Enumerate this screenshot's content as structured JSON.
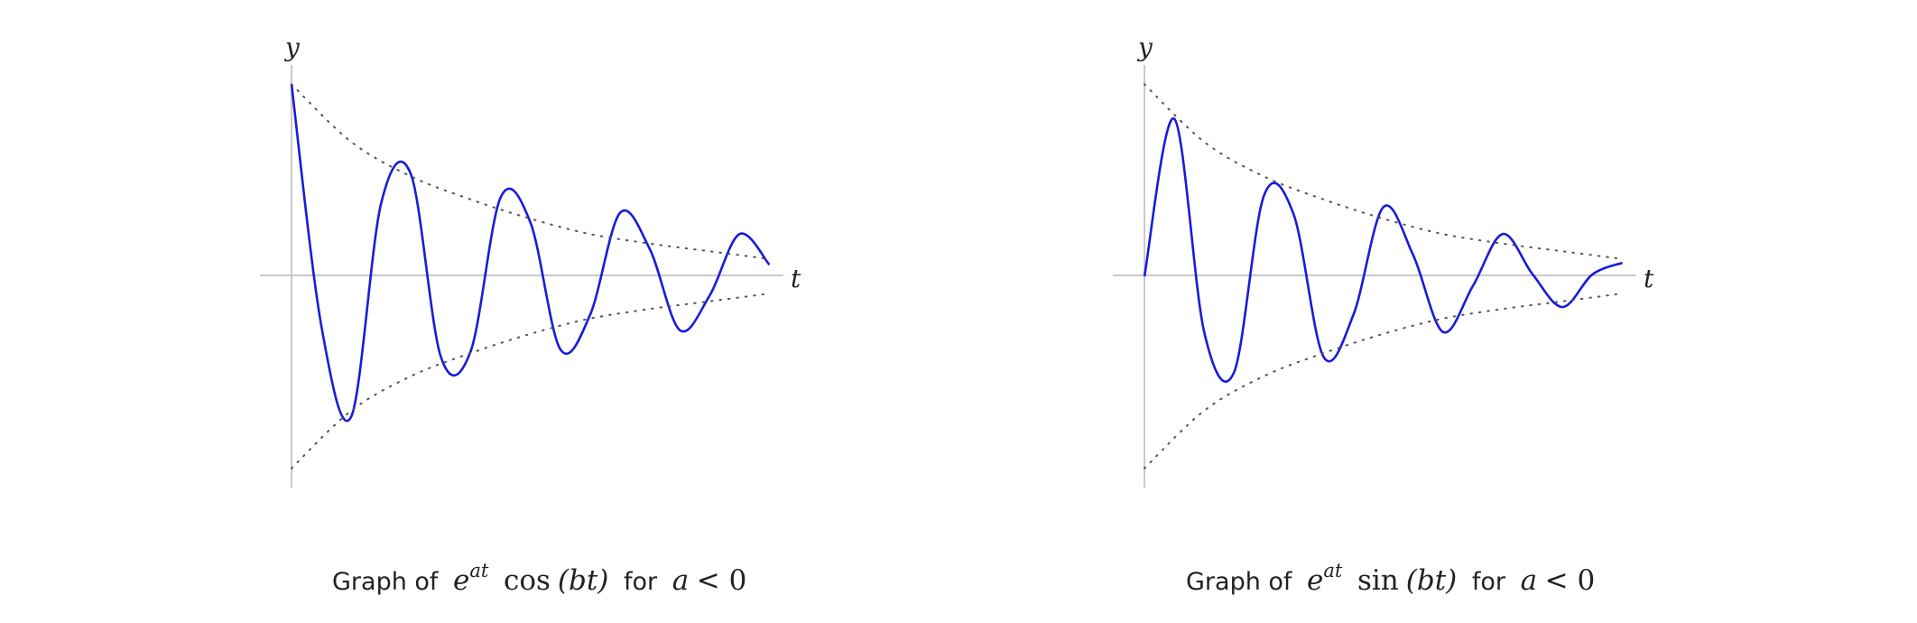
{
  "colors": {
    "curve": "#1a1adc",
    "envelope": "#555555",
    "axis": "#c9c9c9",
    "text": "#222222"
  },
  "chart_data": [
    {
      "type": "line",
      "function": "e^{at} cos(bt), a < 0",
      "xlabel": "t",
      "ylabel": "y",
      "grid": false,
      "xlim": [
        0,
        8.25
      ],
      "ylim": [
        -1.1,
        1.1
      ],
      "series": [
        {
          "style": "solid",
          "x": [
            0.0,
            0.5,
            1.0,
            1.5,
            2.0,
            2.5,
            3.0,
            3.5,
            4.0,
            4.5,
            5.0,
            5.5,
            6.0,
            6.5,
            7.0,
            7.5,
            8.0
          ],
          "y": [
            1.0,
            -0.26,
            -0.73,
            0.38,
            0.53,
            -0.42,
            -0.39,
            0.41,
            0.28,
            -0.38,
            -0.2,
            0.33,
            0.14,
            -0.28,
            -0.1,
            0.22,
            0.06
          ]
        },
        {
          "style": "dotted",
          "x": [
            0,
            1,
            2,
            3,
            4,
            5,
            6,
            7,
            8
          ],
          "y": [
            1.0,
            0.7,
            0.52,
            0.4,
            0.3,
            0.22,
            0.17,
            0.13,
            0.09
          ]
        },
        {
          "style": "dotted",
          "x": [
            0,
            1,
            2,
            3,
            4,
            5,
            6,
            7,
            8
          ],
          "y": [
            -1.0,
            -0.7,
            -0.52,
            -0.4,
            -0.3,
            -0.22,
            -0.17,
            -0.13,
            -0.09
          ]
        }
      ],
      "caption": {
        "prefix": "Graph of",
        "exp_base": "e",
        "exp_power": "at",
        "func_name": "cos",
        "argument": "(bt)",
        "connector": "for",
        "condition_var": "a",
        "condition_rest": "< 0"
      }
    },
    {
      "type": "line",
      "function": "e^{at} sin(bt), a < 0",
      "xlabel": "t",
      "ylabel": "y",
      "grid": false,
      "xlim": [
        0,
        8.25
      ],
      "ylim": [
        -1.1,
        1.1
      ],
      "series": [
        {
          "style": "solid",
          "x": [
            0.0,
            0.5,
            1.0,
            1.5,
            2.0,
            2.5,
            3.0,
            3.5,
            4.0,
            4.5,
            5.0,
            5.5,
            6.0,
            6.5,
            7.0,
            7.5,
            8.0
          ],
          "y": [
            0.0,
            0.82,
            -0.29,
            -0.5,
            0.42,
            0.32,
            -0.42,
            -0.2,
            0.36,
            0.11,
            -0.29,
            -0.05,
            0.22,
            0.01,
            -0.16,
            0.01,
            0.07
          ]
        },
        {
          "style": "dotted",
          "x": [
            0,
            1,
            2,
            3,
            4,
            5,
            6,
            7,
            8
          ],
          "y": [
            1.0,
            0.7,
            0.52,
            0.4,
            0.3,
            0.22,
            0.17,
            0.13,
            0.09
          ]
        },
        {
          "style": "dotted",
          "x": [
            0,
            1,
            2,
            3,
            4,
            5,
            6,
            7,
            8
          ],
          "y": [
            -1.0,
            -0.7,
            -0.52,
            -0.4,
            -0.3,
            -0.22,
            -0.17,
            -0.13,
            -0.09
          ]
        }
      ],
      "caption": {
        "prefix": "Graph of",
        "exp_base": "e",
        "exp_power": "at",
        "func_name": "sin",
        "argument": "(bt)",
        "connector": "for",
        "condition_var": "a",
        "condition_rest": "< 0"
      }
    }
  ]
}
